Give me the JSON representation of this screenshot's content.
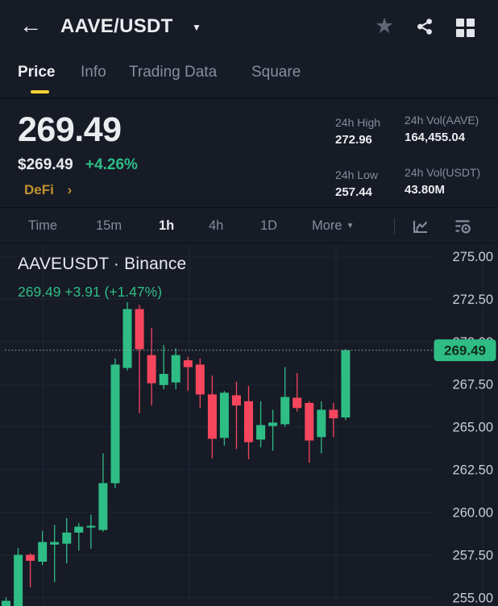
{
  "header": {
    "back_glyph": "←",
    "title": "AAVE/USDT",
    "caret_glyph": "▼",
    "star_glyph": "★"
  },
  "tabs": [
    {
      "label": "Price",
      "active": true
    },
    {
      "label": "Info",
      "active": false
    },
    {
      "label": "Trading Data",
      "active": false
    },
    {
      "label": "Square",
      "active": false
    }
  ],
  "summary": {
    "price": "269.49",
    "usd_price": "$269.49",
    "change_pct": "+4.26%",
    "category_tag": "DeFi",
    "tag_chevron": "›"
  },
  "stats": [
    {
      "label": "24h High",
      "value": "272.96"
    },
    {
      "label": "24h Vol(AAVE)",
      "value": "164,455.04"
    },
    {
      "label": "24h Low",
      "value": "257.44"
    },
    {
      "label": "24h Vol(USDT)",
      "value": "43.80M"
    }
  ],
  "timeframes": [
    {
      "label": "Time",
      "active": false
    },
    {
      "label": "15m",
      "active": false
    },
    {
      "label": "1h",
      "active": true
    },
    {
      "label": "4h",
      "active": false
    },
    {
      "label": "1D",
      "active": false
    }
  ],
  "more_menu": {
    "label": "More",
    "caret_glyph": "▼"
  },
  "colors": {
    "up": "#2EBD85",
    "down": "#F6465D",
    "accent_yellow": "#FCD535",
    "background": "#171B26",
    "tick_text": "#C9CED6",
    "grid_line": "#2A3040",
    "price_tag_text": "#122A1F"
  },
  "chart_data": {
    "type": "candlestick",
    "title": "AAVEUSDT · Binance",
    "change_line": "269.49  +3.91 (+1.47%)",
    "interval": "1h",
    "last_price": 269.49,
    "last_price_label": "269.49",
    "ylim": [
      254.5,
      275.75
    ],
    "y_ticks": [
      "275.00",
      "272.50",
      "270.00",
      "267.50",
      "265.00",
      "262.50",
      "260.00",
      "257.50",
      "255.00"
    ],
    "grid": true,
    "legend_position": "none",
    "candles": [
      {
        "o": 253.9,
        "h": 255.0,
        "l": 253.8,
        "c": 254.8
      },
      {
        "o": 254.4,
        "h": 257.9,
        "l": 254.3,
        "c": 257.5
      },
      {
        "o": 257.5,
        "h": 257.6,
        "l": 255.6,
        "c": 257.15
      },
      {
        "o": 257.1,
        "h": 258.9,
        "l": 256.9,
        "c": 258.25
      },
      {
        "o": 258.1,
        "h": 259.25,
        "l": 255.9,
        "c": 258.25
      },
      {
        "o": 258.15,
        "h": 259.65,
        "l": 257.0,
        "c": 258.8
      },
      {
        "o": 258.8,
        "h": 259.35,
        "l": 257.75,
        "c": 259.15
      },
      {
        "o": 259.1,
        "h": 259.85,
        "l": 257.85,
        "c": 259.2
      },
      {
        "o": 258.95,
        "h": 263.45,
        "l": 258.85,
        "c": 261.7
      },
      {
        "o": 261.7,
        "h": 269.0,
        "l": 261.4,
        "c": 268.65
      },
      {
        "o": 268.45,
        "h": 272.3,
        "l": 268.3,
        "c": 271.9
      },
      {
        "o": 271.9,
        "h": 272.15,
        "l": 265.8,
        "c": 269.55
      },
      {
        "o": 269.2,
        "h": 270.8,
        "l": 266.25,
        "c": 267.55
      },
      {
        "o": 267.45,
        "h": 269.8,
        "l": 267.2,
        "c": 268.1
      },
      {
        "o": 267.6,
        "h": 269.6,
        "l": 267.2,
        "c": 269.2
      },
      {
        "o": 268.9,
        "h": 269.1,
        "l": 267.1,
        "c": 268.5
      },
      {
        "o": 268.65,
        "h": 269.0,
        "l": 266.1,
        "c": 266.9
      },
      {
        "o": 266.9,
        "h": 268.0,
        "l": 263.15,
        "c": 264.3
      },
      {
        "o": 264.35,
        "h": 267.1,
        "l": 263.9,
        "c": 267.0
      },
      {
        "o": 266.85,
        "h": 267.65,
        "l": 263.7,
        "c": 266.25
      },
      {
        "o": 266.5,
        "h": 267.4,
        "l": 263.1,
        "c": 264.1
      },
      {
        "o": 264.25,
        "h": 266.5,
        "l": 263.8,
        "c": 265.1
      },
      {
        "o": 265.05,
        "h": 266.0,
        "l": 263.6,
        "c": 265.25
      },
      {
        "o": 265.15,
        "h": 268.5,
        "l": 265.0,
        "c": 266.75
      },
      {
        "o": 266.7,
        "h": 268.15,
        "l": 265.9,
        "c": 266.1
      },
      {
        "o": 266.4,
        "h": 266.5,
        "l": 262.9,
        "c": 264.2
      },
      {
        "o": 264.4,
        "h": 266.5,
        "l": 263.45,
        "c": 266.0
      },
      {
        "o": 266.0,
        "h": 266.4,
        "l": 264.4,
        "c": 265.5
      },
      {
        "o": 265.55,
        "h": 269.55,
        "l": 265.4,
        "c": 269.49
      }
    ]
  }
}
